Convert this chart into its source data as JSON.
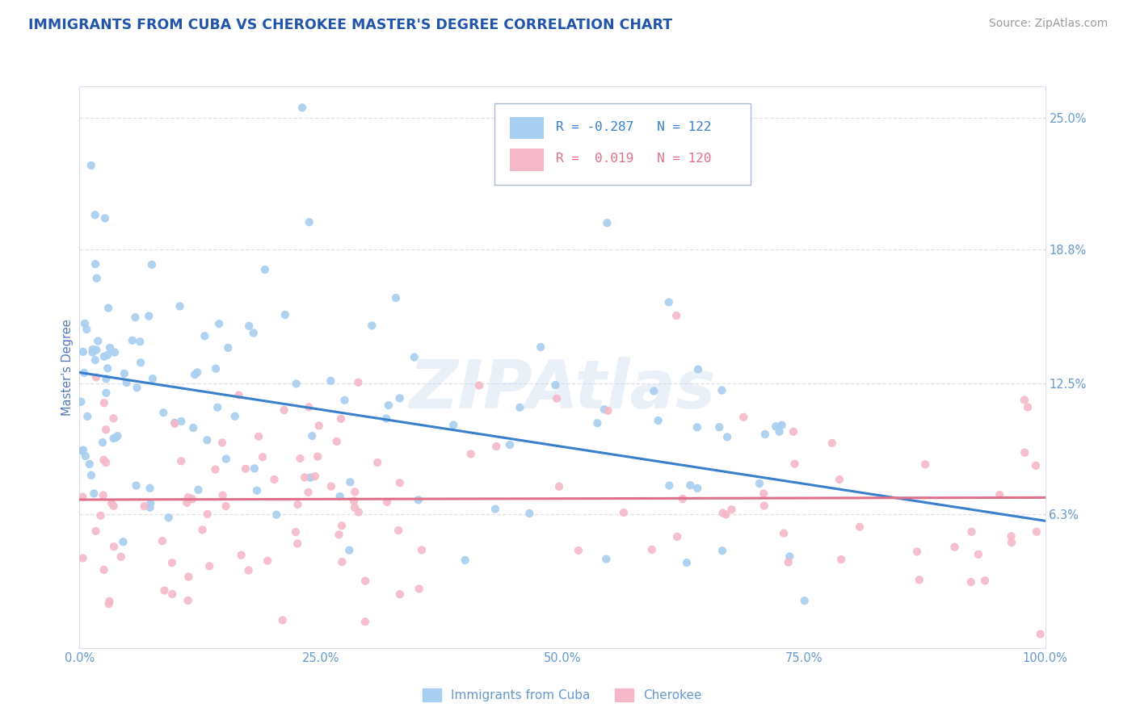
{
  "title": "IMMIGRANTS FROM CUBA VS CHEROKEE MASTER'S DEGREE CORRELATION CHART",
  "source_text": "Source: ZipAtlas.com",
  "ylabel": "Master's Degree",
  "xlim": [
    0,
    100
  ],
  "ylim": [
    0,
    26.5
  ],
  "yticks": [
    6.3,
    12.5,
    18.8,
    25.0
  ],
  "ytick_labels": [
    "6.3%",
    "12.5%",
    "18.8%",
    "25.0%"
  ],
  "xtick_labels": [
    "0.0%",
    "25.0%",
    "50.0%",
    "75.0%",
    "100.0%"
  ],
  "xticks": [
    0,
    25,
    50,
    75,
    100
  ],
  "color_blue": "#A8CEF0",
  "color_pink": "#F4B8C8",
  "trend_blue": "#3A7FCC",
  "trend_pink": "#E0708A",
  "watermark": "ZIPAtlas",
  "background_color": "#FFFFFF",
  "title_color": "#2255AA",
  "source_color": "#999999",
  "axis_label_color": "#5577BB",
  "tick_label_color": "#6699CC",
  "legend_r1_val": "-0.287",
  "legend_n1_val": "122",
  "legend_r2_val": "0.019",
  "legend_n2_val": "120",
  "grid_color": "#CCCCDD",
  "grid_linestyle": "--",
  "grid_alpha": 0.6,
  "cuba_trend_start_y": 13.0,
  "cuba_trend_end_y": 6.0,
  "cherokee_trend_start_y": 7.0,
  "cherokee_trend_end_y": 7.1
}
